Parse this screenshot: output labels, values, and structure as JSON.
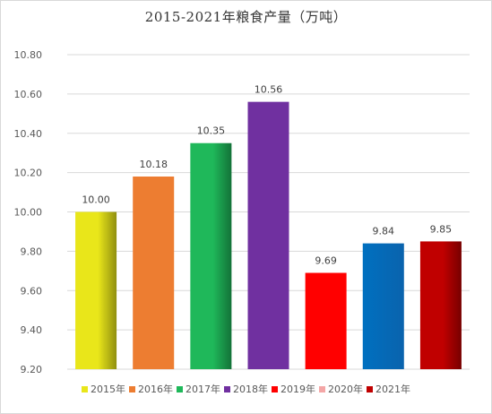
{
  "chart_data": {
    "type": "bar",
    "title": "2015-2021年粮食产量（万吨）",
    "xlabel": "",
    "ylabel": "",
    "ylim": [
      9.2,
      10.8
    ],
    "yticks": [
      "9.20",
      "9.40",
      "9.60",
      "9.80",
      "10.00",
      "10.20",
      "10.40",
      "10.60",
      "10.80"
    ],
    "grid": true,
    "legend": "bottom",
    "categories": [
      "2015年",
      "2016年",
      "2017年",
      "2018年",
      "2019年",
      "2020年",
      "2021年"
    ],
    "values": [
      10.0,
      10.18,
      10.35,
      10.56,
      9.69,
      null,
      9.85
    ],
    "data_labels": [
      "10.00",
      "10.18",
      "10.35",
      "10.56",
      "9.69",
      "9.84",
      "9.85"
    ],
    "colors": [
      "#e9e61a",
      "#ed7d31",
      "#1fb85a",
      "#7030a0",
      "#ff0000",
      "#f4a6a6",
      "#c00000"
    ]
  }
}
